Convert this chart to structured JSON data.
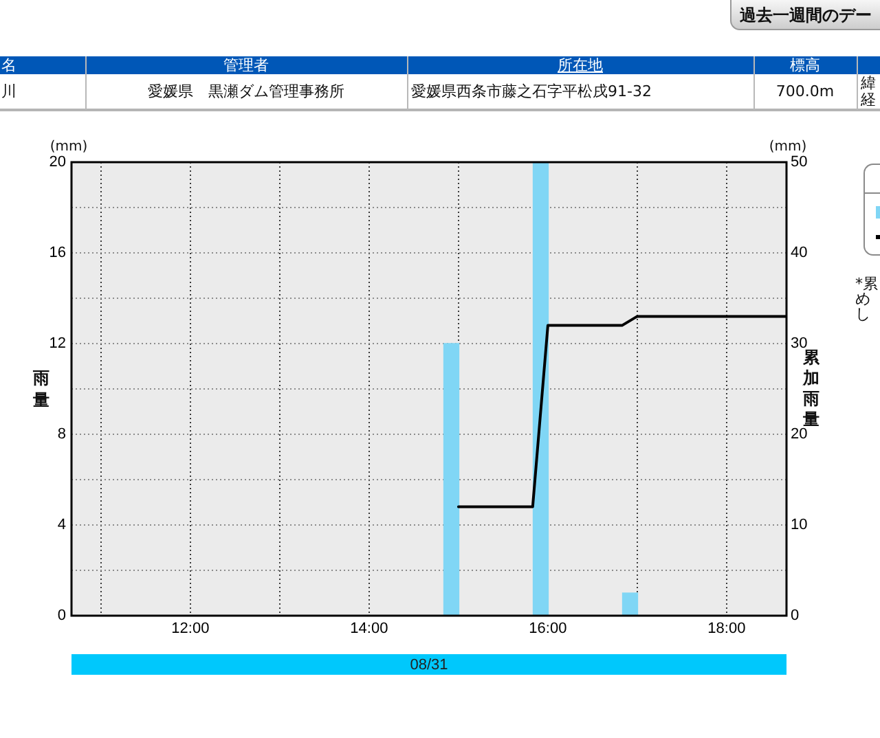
{
  "chart_data": [
    {
      "type": "other",
      "annotations": [
        "過去一週間のデー",
        "名",
        "管理者",
        "所在地",
        "標高",
        "川",
        "愛媛県　黒瀬ダム管理事務所",
        "愛媛県西条市藤之石字平松戌91-32",
        "700.0m",
        "緯",
        "経"
      ]
    },
    {
      "type": "bar",
      "xlabel": "08/31",
      "ylabel": "雨量",
      "y2label": "累加雨量",
      "annotations": [
        "(mm)",
        "(mm)",
        "*累",
        "め",
        "し"
      ],
      "series": [
        {
          "type": "bar",
          "color": "#80d6f5",
          "x": [
            14.92,
            15.92,
            16.92
          ],
          "values": [
            12,
            20,
            1
          ]
        },
        {
          "type": "line",
          "axis": "y2",
          "color": "#000000",
          "x": [
            15,
            15.83,
            16,
            16.83,
            17,
            18.67
          ],
          "values": [
            12,
            12,
            32,
            32,
            33,
            33
          ]
        }
      ],
      "xlim": [
        10.67,
        18.67
      ],
      "xticks": [
        {
          "value": 11,
          "label": null
        },
        {
          "value": 12,
          "label": "12:00"
        },
        {
          "value": 13,
          "label": null
        },
        {
          "value": 14,
          "label": "14:00"
        },
        {
          "value": 15,
          "label": null
        },
        {
          "value": 16,
          "label": "16:00"
        },
        {
          "value": 17,
          "label": null
        },
        {
          "value": 18,
          "label": "18:00"
        }
      ],
      "ylim": [
        0,
        20
      ],
      "yticks": [
        0,
        {
          "value": 2,
          "label": null
        },
        4,
        {
          "value": 6,
          "label": null
        },
        8,
        {
          "value": 10,
          "label": null
        },
        12,
        {
          "value": 14,
          "label": null
        },
        16,
        {
          "value": 18,
          "label": null
        },
        20
      ],
      "y2lim": [
        0,
        50
      ],
      "y2ticks": [
        0,
        10,
        20,
        30,
        40,
        50
      ],
      "grid": true
    }
  ]
}
